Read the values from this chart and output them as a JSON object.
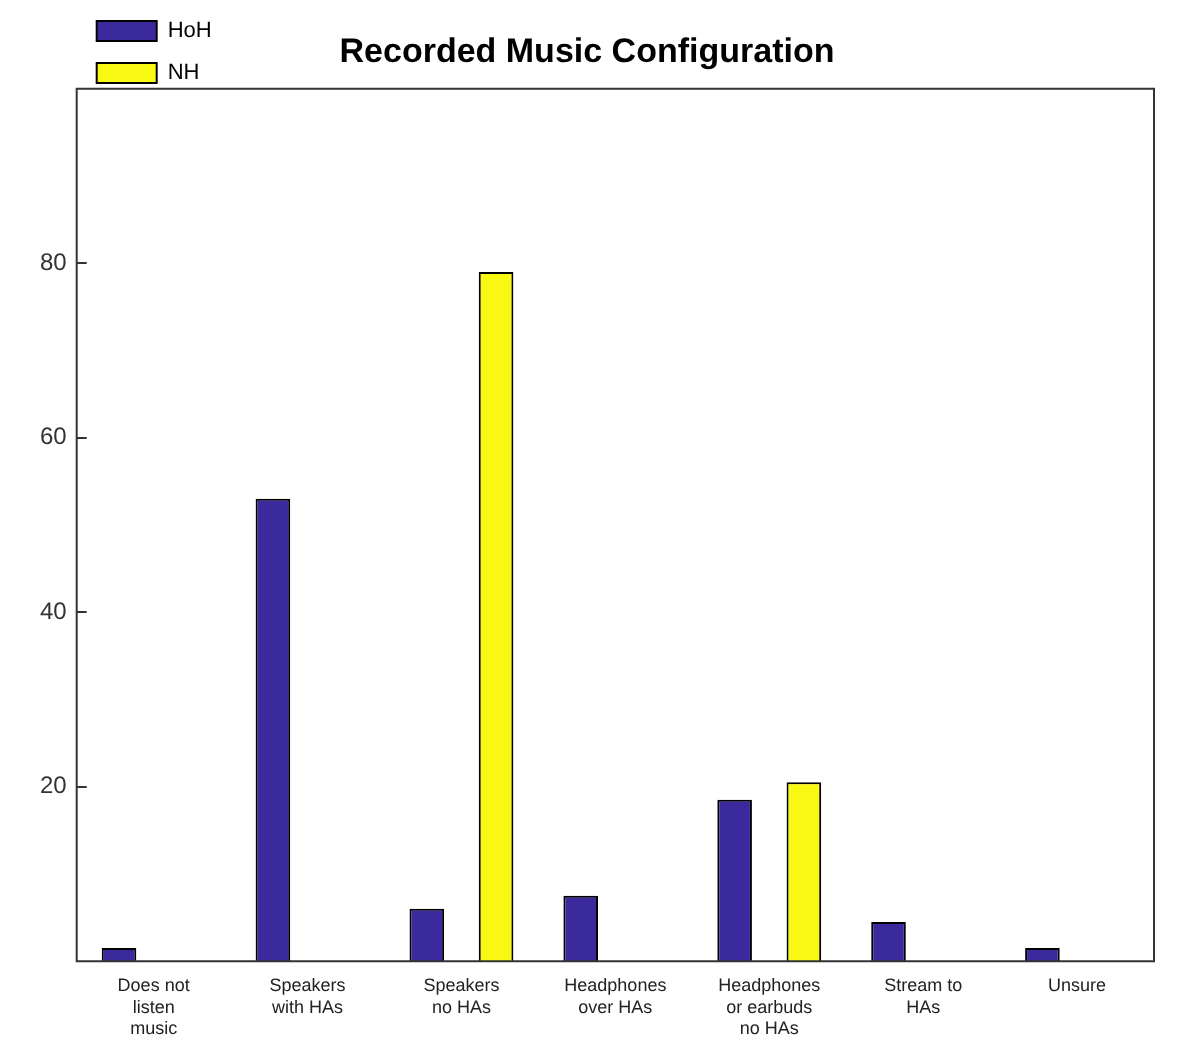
{
  "chart_data": {
    "type": "bar",
    "title": "Recorded Music Configuration",
    "categories": [
      "Does not listen music",
      "Speakers with HAs",
      "Speakers no HAs",
      "Headphones over HAs",
      "Headphones or earbuds no HAs",
      "Stream to HAs",
      "Unsure"
    ],
    "series": [
      {
        "name": "HoH",
        "color": "#3b2a9e",
        "values": [
          1.5,
          53,
          6,
          7.5,
          18.5,
          4.5,
          1.5
        ]
      },
      {
        "name": "NH",
        "color": "#f8f812",
        "values": [
          0,
          0,
          79,
          0,
          20.5,
          0,
          0
        ]
      }
    ],
    "ylim": [
      0,
      100
    ],
    "yticks": [
      20,
      40,
      60,
      80
    ],
    "grid": false,
    "legend": "top left"
  }
}
